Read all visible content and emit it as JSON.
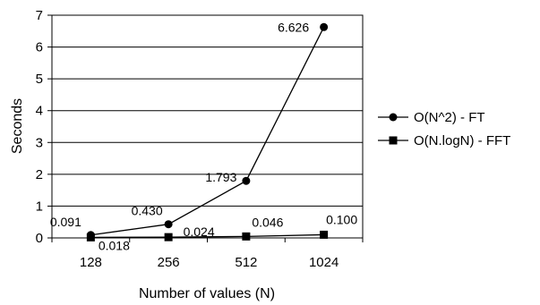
{
  "chart_data": {
    "type": "line",
    "categories": [
      "128",
      "256",
      "512",
      "1024"
    ],
    "series": [
      {
        "name": "O(N^2) - FT",
        "marker": "circle",
        "values": [
          0.091,
          0.43,
          1.793,
          6.626
        ],
        "labels": [
          "0.091",
          "0.430",
          "1.793",
          "6.626"
        ]
      },
      {
        "name": "O(N.logN) - FFT",
        "marker": "square",
        "values": [
          0.018,
          0.024,
          0.046,
          0.1
        ],
        "labels": [
          "0.018",
          "0.024",
          "0.046",
          "0.100"
        ]
      }
    ],
    "xlabel": "Number of values (N)",
    "ylabel": "Seconds",
    "ylim": [
      0,
      7
    ],
    "yticks": [
      "0",
      "1",
      "2",
      "3",
      "4",
      "5",
      "6",
      "7"
    ],
    "grid": true,
    "legend_position": "right",
    "colors": {
      "line": "#000000",
      "grid": "#000000",
      "plot_background": "#ffffff"
    }
  }
}
